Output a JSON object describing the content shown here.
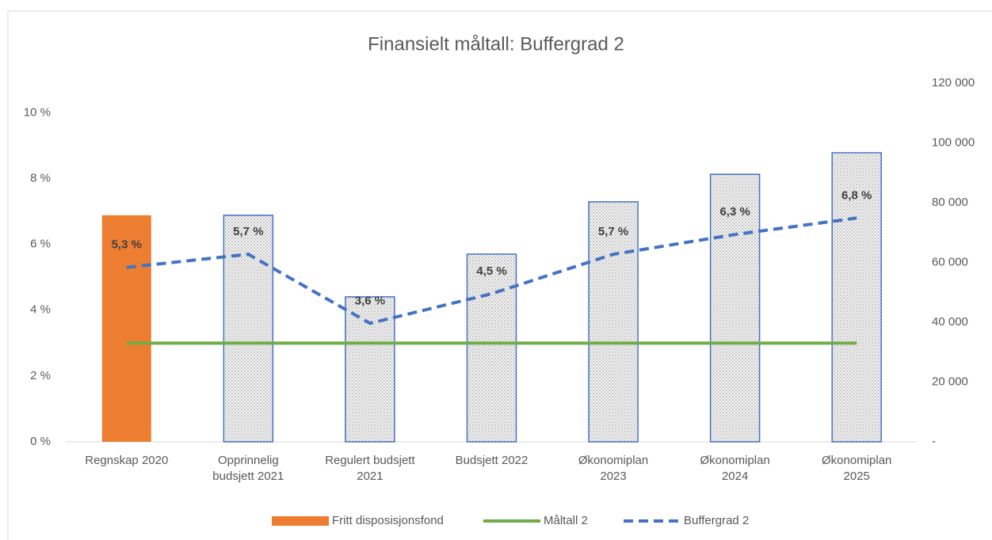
{
  "chart_data": {
    "type": "combo",
    "title": "Finansielt måltall: Buffergrad 2",
    "categories": [
      "Regnskap 2020",
      "Opprinnelig\nbudsjett 2021",
      "Regulert budsjett\n2021",
      "Budsjett 2022",
      "Økonomiplan\n2023",
      "Økonomiplan\n2024",
      "Økonomiplan\n2025"
    ],
    "ylim": [
      0,
      10.9
    ],
    "yticks": [
      {
        "value": 0,
        "label": "0 %"
      },
      {
        "value": 2,
        "label": "2 %"
      },
      {
        "value": 4,
        "label": "4 %"
      },
      {
        "value": 6,
        "label": "6 %"
      },
      {
        "value": 8,
        "label": "8 %"
      },
      {
        "value": 10,
        "label": "10 %"
      }
    ],
    "y2lim": [
      0,
      120000
    ],
    "y2ticks": [
      {
        "value": 0,
        "label": "-"
      },
      {
        "value": 20000,
        "label": "20 000"
      },
      {
        "value": 40000,
        "label": "40 000"
      },
      {
        "value": 60000,
        "label": "60 000"
      },
      {
        "value": 80000,
        "label": "80 000"
      },
      {
        "value": 100000,
        "label": "100 000"
      },
      {
        "value": 120000,
        "label": "120 000"
      }
    ],
    "series": [
      {
        "name": "Fritt disposisjonsfond",
        "type": "bar",
        "axis": "y2",
        "color": "#ed7d31",
        "pattern_edge_color": "#4472c4",
        "values": [
          75800,
          75800,
          48500,
          62800,
          80300,
          89500,
          96700
        ]
      },
      {
        "name": "Måltall 2",
        "type": "line",
        "color": "#70ad47",
        "dashed": false,
        "values": [
          3,
          3,
          3,
          3,
          3,
          3,
          3
        ]
      },
      {
        "name": "Buffergrad 2",
        "type": "line",
        "color": "#4472c4",
        "dashed": true,
        "values": [
          5.3,
          5.7,
          3.6,
          4.5,
          5.7,
          6.3,
          6.8
        ],
        "value_labels": [
          "5,3 %",
          "5,7 %",
          "3,6 %",
          "4,5 %",
          "5,7 %",
          "6,3 %",
          "6,8 %"
        ]
      }
    ],
    "grid": false,
    "legend": "bottom"
  }
}
